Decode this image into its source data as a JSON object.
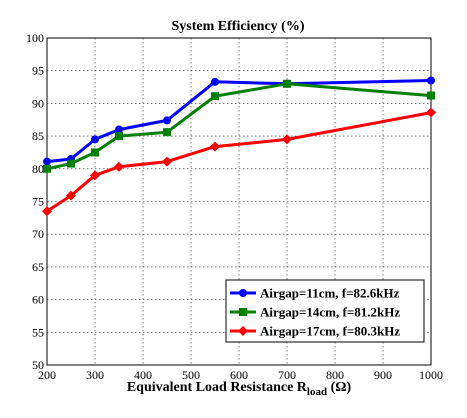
{
  "chart_data": {
    "type": "line",
    "title": "System Efficiency (%)",
    "xlabel_main": "Equivalent Load Resistance R",
    "xlabel_sub": "load",
    "xlabel_unit": " (Ω)",
    "ylabel": "",
    "xlim": [
      200,
      1000
    ],
    "ylim": [
      50,
      100
    ],
    "xticks": [
      200,
      300,
      400,
      500,
      600,
      700,
      800,
      900,
      1000
    ],
    "yticks": [
      50,
      55,
      60,
      65,
      70,
      75,
      80,
      85,
      90,
      95,
      100
    ],
    "grid": true,
    "legend_position": "bottom-right",
    "series": [
      {
        "name": "Airgap=11cm, f=82.6kHz",
        "color": "#0000ff",
        "x": [
          200,
          250,
          300,
          350,
          450,
          550,
          700,
          1000
        ],
        "y": [
          81.1,
          81.5,
          84.5,
          86.0,
          87.4,
          93.3,
          93.0,
          93.5
        ]
      },
      {
        "name": "Airgap=14cm, f=81.2kHz",
        "color": "#007f00",
        "x": [
          200,
          250,
          300,
          350,
          450,
          550,
          700,
          1000
        ],
        "y": [
          80.0,
          80.8,
          82.5,
          85.0,
          85.6,
          91.1,
          93.0,
          91.2
        ]
      },
      {
        "name": "Airgap=17cm, f=80.3kHz",
        "color": "#ff0000",
        "x": [
          200,
          250,
          300,
          350,
          450,
          550,
          700,
          1000
        ],
        "y": [
          73.5,
          75.9,
          79.0,
          80.3,
          81.1,
          83.4,
          84.5,
          88.6
        ]
      }
    ]
  }
}
